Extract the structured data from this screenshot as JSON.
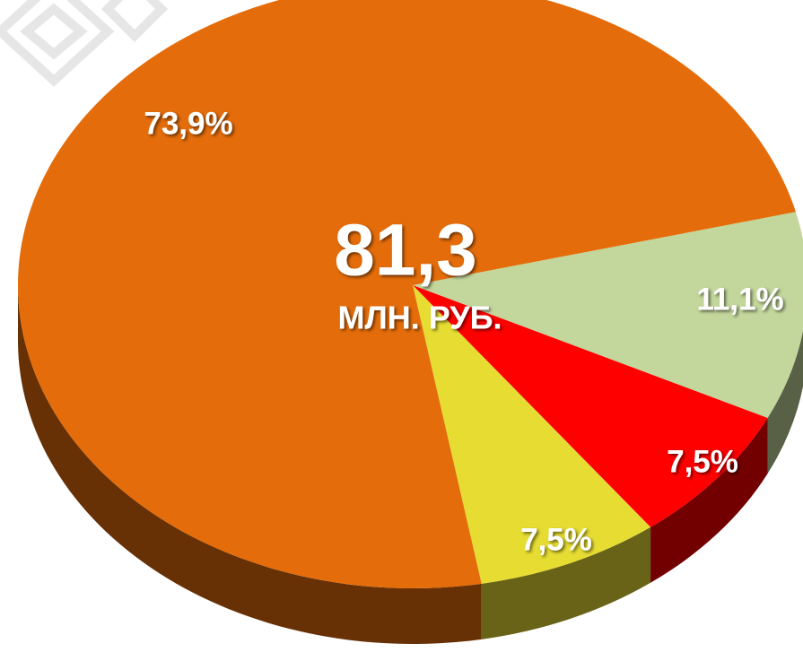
{
  "chart_data": {
    "type": "pie",
    "values": [
      11.1,
      7.5,
      7.5,
      73.9
    ],
    "value_labels": [
      "11,1%",
      "7,5%",
      "7,5%",
      "73,9%"
    ],
    "colors": [
      "#c3d69b",
      "#ff0000",
      "#e6dc32",
      "#e46c0a"
    ],
    "center_label": "81,3",
    "center_sublabel": "МЛН. РУБ."
  }
}
